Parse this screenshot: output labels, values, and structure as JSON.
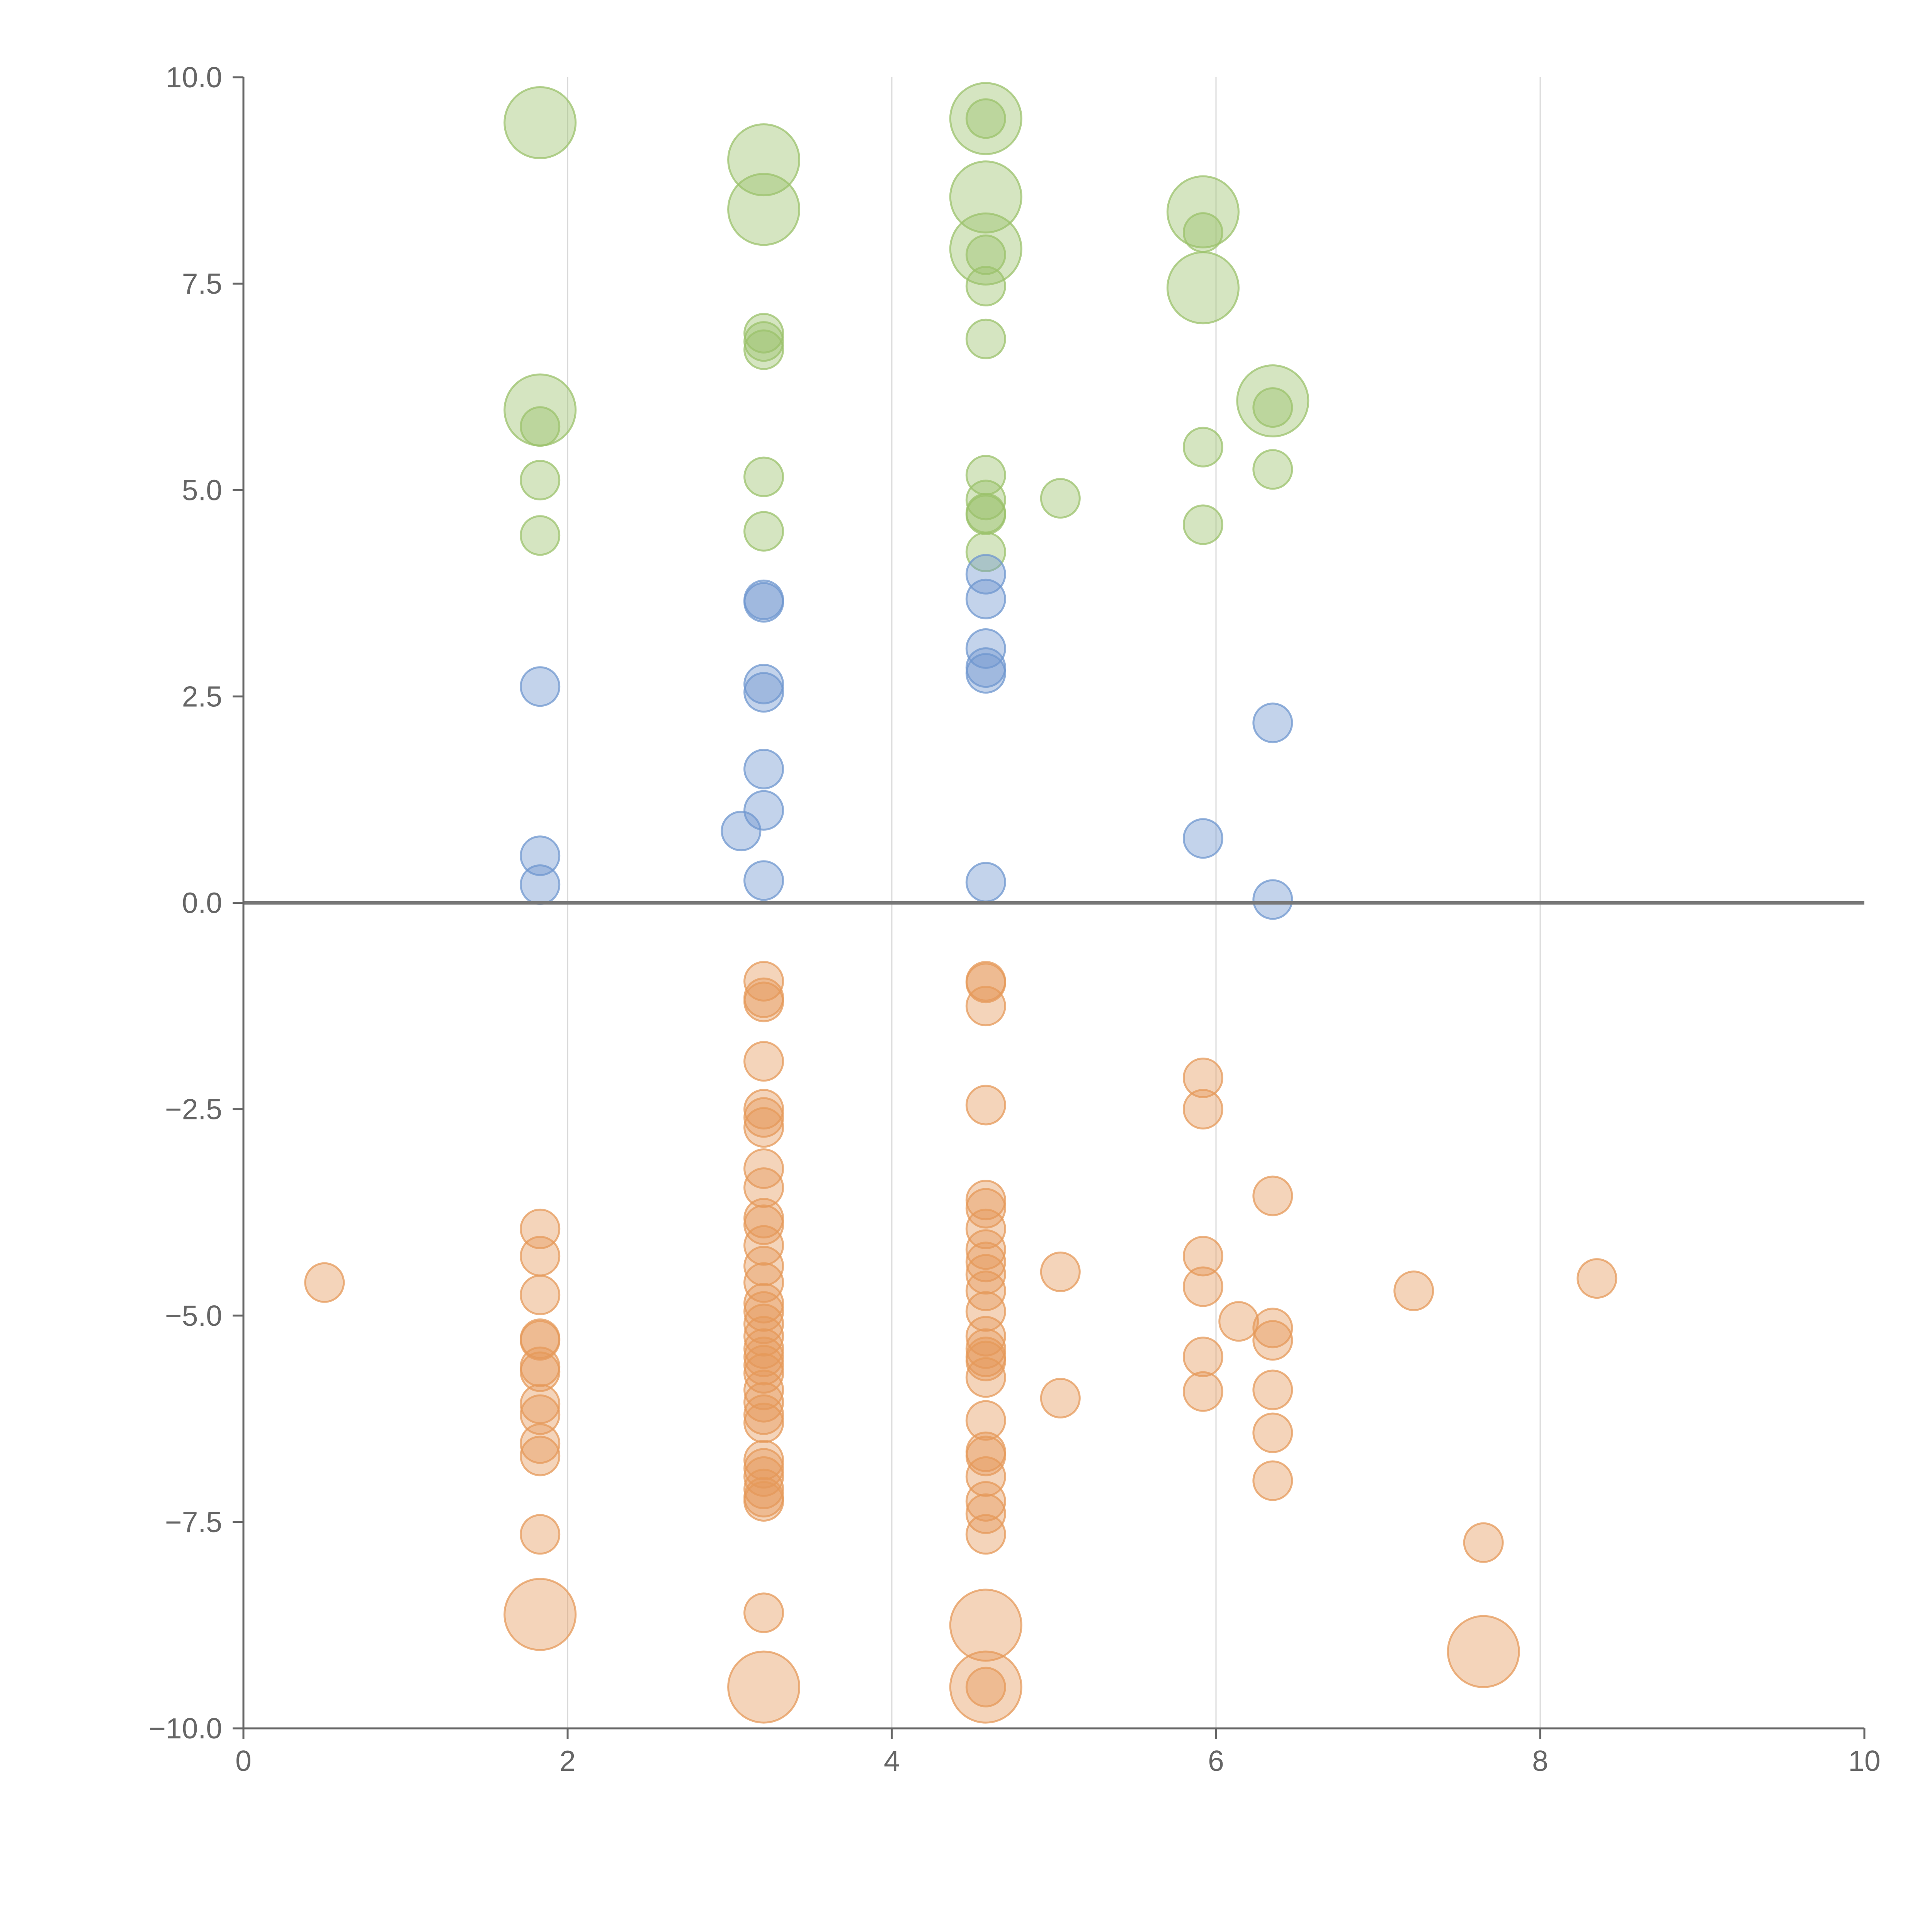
{
  "colors": {
    "green": "#9bc26b",
    "blue": "#6f97cf",
    "orange": "#e5995a",
    "axis": "#666666",
    "grid": "#d9d9d9"
  },
  "chart_data": {
    "type": "scatter",
    "title": "",
    "xlabel": "",
    "ylabel": "",
    "xlim": [
      0,
      10
    ],
    "ylim": [
      -10,
      10
    ],
    "x_ticks": [
      0,
      2,
      4,
      6,
      8,
      10
    ],
    "x_tick_labels": [
      "0",
      "2",
      "4",
      "6",
      "8",
      "10"
    ],
    "y_ticks": [
      10,
      7.5,
      5,
      2.5,
      0,
      -2.5,
      -5,
      -7.5,
      -10
    ],
    "y_tick_labels": [
      "10.0",
      "7.5",
      "5.0",
      "2.5",
      "0.0",
      "−2.5",
      "−5.0",
      "−7.5",
      "−10.0"
    ],
    "grid": "vertical",
    "series": [
      {
        "name": "green",
        "color": "green",
        "points": [
          {
            "x": 1.83,
            "y": 9.45,
            "size": "large"
          },
          {
            "x": 1.83,
            "y": 5.97,
            "size": "large"
          },
          {
            "x": 1.83,
            "y": 5.77,
            "size": "small"
          },
          {
            "x": 1.83,
            "y": 5.12,
            "size": "small"
          },
          {
            "x": 1.83,
            "y": 4.45,
            "size": "small"
          },
          {
            "x": 3.21,
            "y": 9.0,
            "size": "large"
          },
          {
            "x": 3.21,
            "y": 8.4,
            "size": "large"
          },
          {
            "x": 3.21,
            "y": 6.9,
            "size": "small"
          },
          {
            "x": 3.21,
            "y": 6.8,
            "size": "small"
          },
          {
            "x": 3.21,
            "y": 6.7,
            "size": "small"
          },
          {
            "x": 3.21,
            "y": 5.16,
            "size": "small"
          },
          {
            "x": 3.21,
            "y": 4.5,
            "size": "small"
          },
          {
            "x": 4.58,
            "y": 9.5,
            "size": "large"
          },
          {
            "x": 4.58,
            "y": 9.5,
            "size": "small"
          },
          {
            "x": 4.58,
            "y": 8.55,
            "size": "large"
          },
          {
            "x": 4.58,
            "y": 7.92,
            "size": "large"
          },
          {
            "x": 4.58,
            "y": 7.85,
            "size": "small"
          },
          {
            "x": 4.58,
            "y": 7.47,
            "size": "small"
          },
          {
            "x": 4.58,
            "y": 6.83,
            "size": "small"
          },
          {
            "x": 4.58,
            "y": 5.18,
            "size": "small"
          },
          {
            "x": 4.58,
            "y": 4.88,
            "size": "small"
          },
          {
            "x": 4.58,
            "y": 4.72,
            "size": "small"
          },
          {
            "x": 4.58,
            "y": 4.7,
            "size": "small"
          },
          {
            "x": 4.58,
            "y": 4.25,
            "size": "small"
          },
          {
            "x": 5.04,
            "y": 4.9,
            "size": "small"
          },
          {
            "x": 5.92,
            "y": 8.37,
            "size": "large"
          },
          {
            "x": 5.92,
            "y": 8.12,
            "size": "small"
          },
          {
            "x": 5.92,
            "y": 7.45,
            "size": "large"
          },
          {
            "x": 5.92,
            "y": 5.52,
            "size": "small"
          },
          {
            "x": 5.92,
            "y": 4.58,
            "size": "small"
          },
          {
            "x": 6.35,
            "y": 6.08,
            "size": "large"
          },
          {
            "x": 6.35,
            "y": 6.0,
            "size": "small"
          },
          {
            "x": 6.35,
            "y": 5.25,
            "size": "small"
          }
        ]
      },
      {
        "name": "blue",
        "color": "blue",
        "points": [
          {
            "x": 1.83,
            "y": 2.62,
            "size": "small"
          },
          {
            "x": 1.83,
            "y": 0.57,
            "size": "small"
          },
          {
            "x": 1.83,
            "y": 0.22,
            "size": "small"
          },
          {
            "x": 3.21,
            "y": 3.67,
            "size": "small"
          },
          {
            "x": 3.21,
            "y": 3.64,
            "size": "small"
          },
          {
            "x": 3.21,
            "y": 2.65,
            "size": "small"
          },
          {
            "x": 3.21,
            "y": 2.55,
            "size": "small"
          },
          {
            "x": 3.21,
            "y": 1.62,
            "size": "small"
          },
          {
            "x": 3.21,
            "y": 1.12,
            "size": "small"
          },
          {
            "x": 3.07,
            "y": 0.87,
            "size": "small"
          },
          {
            "x": 3.21,
            "y": 0.27,
            "size": "small"
          },
          {
            "x": 4.58,
            "y": 3.98,
            "size": "small"
          },
          {
            "x": 4.58,
            "y": 3.68,
            "size": "small"
          },
          {
            "x": 4.58,
            "y": 3.08,
            "size": "small"
          },
          {
            "x": 4.58,
            "y": 2.85,
            "size": "small"
          },
          {
            "x": 4.58,
            "y": 2.78,
            "size": "small"
          },
          {
            "x": 4.58,
            "y": 0.25,
            "size": "small"
          },
          {
            "x": 5.92,
            "y": 0.78,
            "size": "small"
          },
          {
            "x": 6.35,
            "y": 2.18,
            "size": "small"
          },
          {
            "x": 6.35,
            "y": 0.04,
            "size": "small"
          }
        ]
      },
      {
        "name": "orange",
        "color": "orange",
        "points": [
          {
            "x": 0.5,
            "y": -4.6,
            "size": "small"
          },
          {
            "x": 1.83,
            "y": -3.95,
            "size": "small"
          },
          {
            "x": 1.83,
            "y": -4.28,
            "size": "small"
          },
          {
            "x": 1.83,
            "y": -4.75,
            "size": "small"
          },
          {
            "x": 1.83,
            "y": -5.28,
            "size": "small"
          },
          {
            "x": 1.83,
            "y": -5.3,
            "size": "small"
          },
          {
            "x": 1.83,
            "y": -5.62,
            "size": "small"
          },
          {
            "x": 1.83,
            "y": -5.68,
            "size": "small"
          },
          {
            "x": 1.83,
            "y": -6.07,
            "size": "small"
          },
          {
            "x": 1.83,
            "y": -6.2,
            "size": "small"
          },
          {
            "x": 1.83,
            "y": -6.55,
            "size": "small"
          },
          {
            "x": 1.83,
            "y": -6.7,
            "size": "small"
          },
          {
            "x": 1.83,
            "y": -7.65,
            "size": "small"
          },
          {
            "x": 1.83,
            "y": -8.62,
            "size": "large"
          },
          {
            "x": 3.21,
            "y": -0.95,
            "size": "small"
          },
          {
            "x": 3.21,
            "y": -1.15,
            "size": "small"
          },
          {
            "x": 3.21,
            "y": -1.2,
            "size": "small"
          },
          {
            "x": 3.21,
            "y": -1.92,
            "size": "small"
          },
          {
            "x": 3.21,
            "y": -2.5,
            "size": "small"
          },
          {
            "x": 3.21,
            "y": -2.6,
            "size": "small"
          },
          {
            "x": 3.21,
            "y": -2.72,
            "size": "small"
          },
          {
            "x": 3.21,
            "y": -3.22,
            "size": "small"
          },
          {
            "x": 3.21,
            "y": -3.45,
            "size": "small"
          },
          {
            "x": 3.21,
            "y": -3.82,
            "size": "small"
          },
          {
            "x": 3.21,
            "y": -3.9,
            "size": "small"
          },
          {
            "x": 3.21,
            "y": -4.15,
            "size": "small"
          },
          {
            "x": 3.21,
            "y": -4.4,
            "size": "small"
          },
          {
            "x": 3.21,
            "y": -4.6,
            "size": "small"
          },
          {
            "x": 3.21,
            "y": -4.85,
            "size": "small"
          },
          {
            "x": 3.21,
            "y": -4.95,
            "size": "small"
          },
          {
            "x": 3.21,
            "y": -5.1,
            "size": "small"
          },
          {
            "x": 3.21,
            "y": -5.25,
            "size": "small"
          },
          {
            "x": 3.21,
            "y": -5.4,
            "size": "small"
          },
          {
            "x": 3.21,
            "y": -5.5,
            "size": "small"
          },
          {
            "x": 3.21,
            "y": -5.6,
            "size": "small"
          },
          {
            "x": 3.21,
            "y": -5.7,
            "size": "small"
          },
          {
            "x": 3.21,
            "y": -5.9,
            "size": "small"
          },
          {
            "x": 3.21,
            "y": -6.05,
            "size": "small"
          },
          {
            "x": 3.21,
            "y": -6.2,
            "size": "small"
          },
          {
            "x": 3.21,
            "y": -6.3,
            "size": "small"
          },
          {
            "x": 3.21,
            "y": -6.75,
            "size": "small"
          },
          {
            "x": 3.21,
            "y": -6.85,
            "size": "small"
          },
          {
            "x": 3.21,
            "y": -6.95,
            "size": "small"
          },
          {
            "x": 3.21,
            "y": -7.1,
            "size": "small"
          },
          {
            "x": 3.21,
            "y": -7.2,
            "size": "small"
          },
          {
            "x": 3.21,
            "y": -7.25,
            "size": "small"
          },
          {
            "x": 3.21,
            "y": -8.6,
            "size": "small"
          },
          {
            "x": 3.21,
            "y": -9.5,
            "size": "large"
          },
          {
            "x": 4.58,
            "y": -0.95,
            "size": "small"
          },
          {
            "x": 4.58,
            "y": -0.97,
            "size": "small"
          },
          {
            "x": 4.58,
            "y": -1.25,
            "size": "small"
          },
          {
            "x": 4.58,
            "y": -2.45,
            "size": "small"
          },
          {
            "x": 4.58,
            "y": -3.6,
            "size": "small"
          },
          {
            "x": 4.58,
            "y": -3.7,
            "size": "small"
          },
          {
            "x": 4.58,
            "y": -3.95,
            "size": "small"
          },
          {
            "x": 4.58,
            "y": -4.2,
            "size": "small"
          },
          {
            "x": 4.58,
            "y": -4.35,
            "size": "small"
          },
          {
            "x": 4.58,
            "y": -4.5,
            "size": "small"
          },
          {
            "x": 4.58,
            "y": -4.7,
            "size": "small"
          },
          {
            "x": 4.58,
            "y": -4.95,
            "size": "small"
          },
          {
            "x": 4.58,
            "y": -5.25,
            "size": "small"
          },
          {
            "x": 4.58,
            "y": -5.4,
            "size": "small"
          },
          {
            "x": 4.58,
            "y": -5.5,
            "size": "small"
          },
          {
            "x": 4.58,
            "y": -5.55,
            "size": "small"
          },
          {
            "x": 4.58,
            "y": -5.75,
            "size": "small"
          },
          {
            "x": 4.58,
            "y": -6.27,
            "size": "small"
          },
          {
            "x": 4.58,
            "y": -6.65,
            "size": "small"
          },
          {
            "x": 4.58,
            "y": -6.7,
            "size": "small"
          },
          {
            "x": 4.58,
            "y": -6.95,
            "size": "small"
          },
          {
            "x": 4.58,
            "y": -7.25,
            "size": "small"
          },
          {
            "x": 4.58,
            "y": -7.4,
            "size": "small"
          },
          {
            "x": 4.58,
            "y": -7.65,
            "size": "small"
          },
          {
            "x": 4.58,
            "y": -8.75,
            "size": "large"
          },
          {
            "x": 4.58,
            "y": -9.5,
            "size": "large"
          },
          {
            "x": 4.58,
            "y": -9.5,
            "size": "small"
          },
          {
            "x": 5.04,
            "y": -4.47,
            "size": "small"
          },
          {
            "x": 5.04,
            "y": -6.0,
            "size": "small"
          },
          {
            "x": 5.92,
            "y": -2.12,
            "size": "small"
          },
          {
            "x": 5.92,
            "y": -2.5,
            "size": "small"
          },
          {
            "x": 5.92,
            "y": -4.28,
            "size": "small"
          },
          {
            "x": 5.92,
            "y": -4.65,
            "size": "small"
          },
          {
            "x": 5.92,
            "y": -5.5,
            "size": "small"
          },
          {
            "x": 5.92,
            "y": -5.92,
            "size": "small"
          },
          {
            "x": 6.14,
            "y": -5.07,
            "size": "small"
          },
          {
            "x": 6.35,
            "y": -3.55,
            "size": "small"
          },
          {
            "x": 6.35,
            "y": -5.15,
            "size": "small"
          },
          {
            "x": 6.35,
            "y": -5.3,
            "size": "small"
          },
          {
            "x": 6.35,
            "y": -5.9,
            "size": "small"
          },
          {
            "x": 6.35,
            "y": -6.42,
            "size": "small"
          },
          {
            "x": 6.35,
            "y": -7.0,
            "size": "small"
          },
          {
            "x": 7.22,
            "y": -4.7,
            "size": "small"
          },
          {
            "x": 7.65,
            "y": -7.75,
            "size": "small"
          },
          {
            "x": 7.65,
            "y": -9.07,
            "size": "large"
          },
          {
            "x": 8.35,
            "y": -4.55,
            "size": "small"
          }
        ]
      }
    ]
  }
}
